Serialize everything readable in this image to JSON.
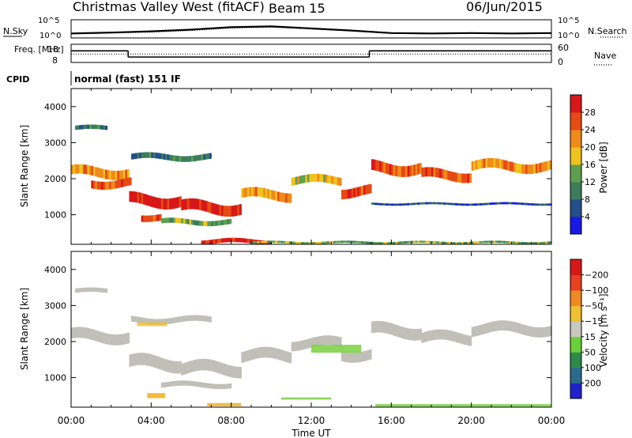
{
  "header": {
    "station": "Christmas Valley West (fitACF)",
    "beam": "Beam 15",
    "date": "06/Jun/2015"
  },
  "colors": {
    "background": "#ffffff",
    "frame": "#000000",
    "velocity_gray": "#c0c0b8"
  },
  "chart_data": [
    {
      "type": "line",
      "panel": "noise",
      "ylabel_left": "N.Sky",
      "ylabel_right": "N.Search",
      "left_ticks": [
        "10^5",
        "10^0"
      ],
      "right_ticks": [
        "10^5",
        "10^0"
      ],
      "x_hours": [
        0,
        2,
        4,
        6,
        8,
        10,
        12,
        14,
        16,
        18,
        20,
        22,
        24
      ],
      "n_sky_log": [
        0.45,
        0.55,
        0.7,
        0.9,
        1.2,
        1.3,
        1.05,
        0.8,
        0.5,
        0.45,
        0.5,
        0.45,
        0.5
      ],
      "n_search_log": [
        0.4,
        0.5,
        0.6,
        0.8,
        1.1,
        1.2,
        1.0,
        0.75,
        0.45,
        0.4,
        0.45,
        0.4,
        0.45
      ]
    },
    {
      "type": "line",
      "panel": "frequency",
      "ylabel_left": "Freq. [MHz]",
      "ylabel_right": "Nave",
      "left_ticks": [
        "18",
        "8"
      ],
      "right_ticks": [
        "60",
        "0"
      ],
      "freq_segments": [
        {
          "x0": 0.0,
          "x1": 2.85,
          "value": 14.5
        },
        {
          "x0": 2.85,
          "x1": 14.9,
          "value": 10.8
        },
        {
          "x0": 14.9,
          "x1": 24.0,
          "value": 14.5
        }
      ],
      "nave_dotted_value": 12.6
    },
    {
      "type": "text",
      "panel": "cpid",
      "label": "CPID",
      "value": "normal (fast) 151 IF"
    },
    {
      "type": "heatmap",
      "panel": "power",
      "ylabel": "Slant Range [km]",
      "y_ticks": [
        1000,
        2000,
        3000,
        4000
      ],
      "ylim": [
        180,
        4500
      ],
      "xlim": [
        0,
        24
      ],
      "colorbar_label": "Power [dB]",
      "colorbar_ticks": [
        "4",
        "8",
        "12",
        "16",
        "20",
        "24",
        "28"
      ],
      "colorbar_colors": [
        "#1818e8",
        "#234f8c",
        "#3c7e5c",
        "#5fa04f",
        "#f0c21e",
        "#f08a18",
        "#e84a14",
        "#d81818"
      ],
      "bands": [
        {
          "x0": 0.2,
          "x1": 1.8,
          "ymid": 3400,
          "thick": 120,
          "level": 2
        },
        {
          "x0": 0.0,
          "x1": 2.9,
          "ymid": 2180,
          "thick": 260,
          "level": 5
        },
        {
          "x0": 1.0,
          "x1": 3.0,
          "ymid": 1880,
          "thick": 220,
          "level": 6
        },
        {
          "x0": 2.9,
          "x1": 5.5,
          "ymid": 1400,
          "thick": 300,
          "level": 7
        },
        {
          "x0": 5.5,
          "x1": 8.5,
          "ymid": 1200,
          "thick": 300,
          "level": 7
        },
        {
          "x0": 8.5,
          "x1": 11.0,
          "ymid": 1550,
          "thick": 260,
          "level": 5
        },
        {
          "x0": 11.0,
          "x1": 13.5,
          "ymid": 1950,
          "thick": 220,
          "level": 4
        },
        {
          "x0": 13.5,
          "x1": 15.0,
          "ymid": 1650,
          "thick": 260,
          "level": 6
        },
        {
          "x0": 15.0,
          "x1": 17.5,
          "ymid": 2300,
          "thick": 300,
          "level": 6
        },
        {
          "x0": 17.5,
          "x1": 20.0,
          "ymid": 2100,
          "thick": 260,
          "level": 6
        },
        {
          "x0": 20.0,
          "x1": 24.0,
          "ymid": 2350,
          "thick": 260,
          "level": 5
        },
        {
          "x0": 3.5,
          "x1": 4.5,
          "ymid": 950,
          "thick": 180,
          "level": 6
        },
        {
          "x0": 4.5,
          "x1": 8.0,
          "ymid": 800,
          "thick": 140,
          "level": 3
        },
        {
          "x0": 6.5,
          "x1": 10.0,
          "ymid": 260,
          "thick": 120,
          "level": 7
        },
        {
          "x0": 3.0,
          "x1": 7.0,
          "ymid": 2600,
          "thick": 160,
          "level": 2
        },
        {
          "x0": 15.0,
          "x1": 24.0,
          "ymid": 1300,
          "thick": 60,
          "level": 1
        },
        {
          "x0": 9.0,
          "x1": 24.0,
          "ymid": 230,
          "thick": 60,
          "level": 3
        }
      ]
    },
    {
      "type": "heatmap",
      "panel": "velocity",
      "ylabel": "Slant Range [km]",
      "y_ticks": [
        1000,
        2000,
        3000,
        4000
      ],
      "ylim": [
        180,
        4500
      ],
      "xlim": [
        0,
        24
      ],
      "xlabel": "Time UT",
      "x_tick_labels": [
        "00:00",
        "04:00",
        "08:00",
        "12:00",
        "16:00",
        "20:00",
        "00:00"
      ],
      "colorbar_label": "Velocity [m s⁻¹]",
      "colorbar_ticks": [
        "200",
        "100",
        "50",
        "15",
        "−15",
        "−50",
        "−100",
        "−200"
      ],
      "colorbar_colors": [
        "#2222cc",
        "#2a6a8c",
        "#2e8a4a",
        "#6ad03a",
        "#c8c8c0",
        "#f0c030",
        "#f08a20",
        "#e84020",
        "#d81818"
      ],
      "bands": [
        {
          "x0": 0.2,
          "x1": 1.8,
          "ymid": 3400,
          "thick": 120
        },
        {
          "x0": 0.0,
          "x1": 2.9,
          "ymid": 2150,
          "thick": 300
        },
        {
          "x0": 2.9,
          "x1": 5.5,
          "ymid": 1400,
          "thick": 340
        },
        {
          "x0": 5.5,
          "x1": 8.5,
          "ymid": 1250,
          "thick": 320
        },
        {
          "x0": 8.5,
          "x1": 11.0,
          "ymid": 1600,
          "thick": 300
        },
        {
          "x0": 11.0,
          "x1": 13.5,
          "ymid": 1950,
          "thick": 260
        },
        {
          "x0": 13.5,
          "x1": 15.0,
          "ymid": 1650,
          "thick": 280
        },
        {
          "x0": 15.0,
          "x1": 17.5,
          "ymid": 2300,
          "thick": 320
        },
        {
          "x0": 17.5,
          "x1": 20.0,
          "ymid": 2100,
          "thick": 280
        },
        {
          "x0": 20.0,
          "x1": 24.0,
          "ymid": 2350,
          "thick": 280
        },
        {
          "x0": 3.0,
          "x1": 7.0,
          "ymid": 2600,
          "thick": 160
        },
        {
          "x0": 4.5,
          "x1": 8.0,
          "ymid": 800,
          "thick": 140
        }
      ],
      "accent_patches": [
        {
          "x0": 3.3,
          "x1": 4.8,
          "ymid": 2480,
          "thick": 100,
          "color": "#f0c030"
        },
        {
          "x0": 3.8,
          "x1": 4.7,
          "ymid": 500,
          "thick": 140,
          "color": "#f0b020"
        },
        {
          "x0": 6.8,
          "x1": 8.5,
          "ymid": 250,
          "thick": 90,
          "color": "#f0b020"
        },
        {
          "x0": 12.0,
          "x1": 14.5,
          "ymid": 1800,
          "thick": 220,
          "color": "#78d040"
        },
        {
          "x0": 15.2,
          "x1": 24.0,
          "ymid": 230,
          "thick": 70,
          "color": "#78d040"
        },
        {
          "x0": 10.5,
          "x1": 13.0,
          "ymid": 420,
          "thick": 60,
          "color": "#78d040"
        }
      ]
    }
  ]
}
